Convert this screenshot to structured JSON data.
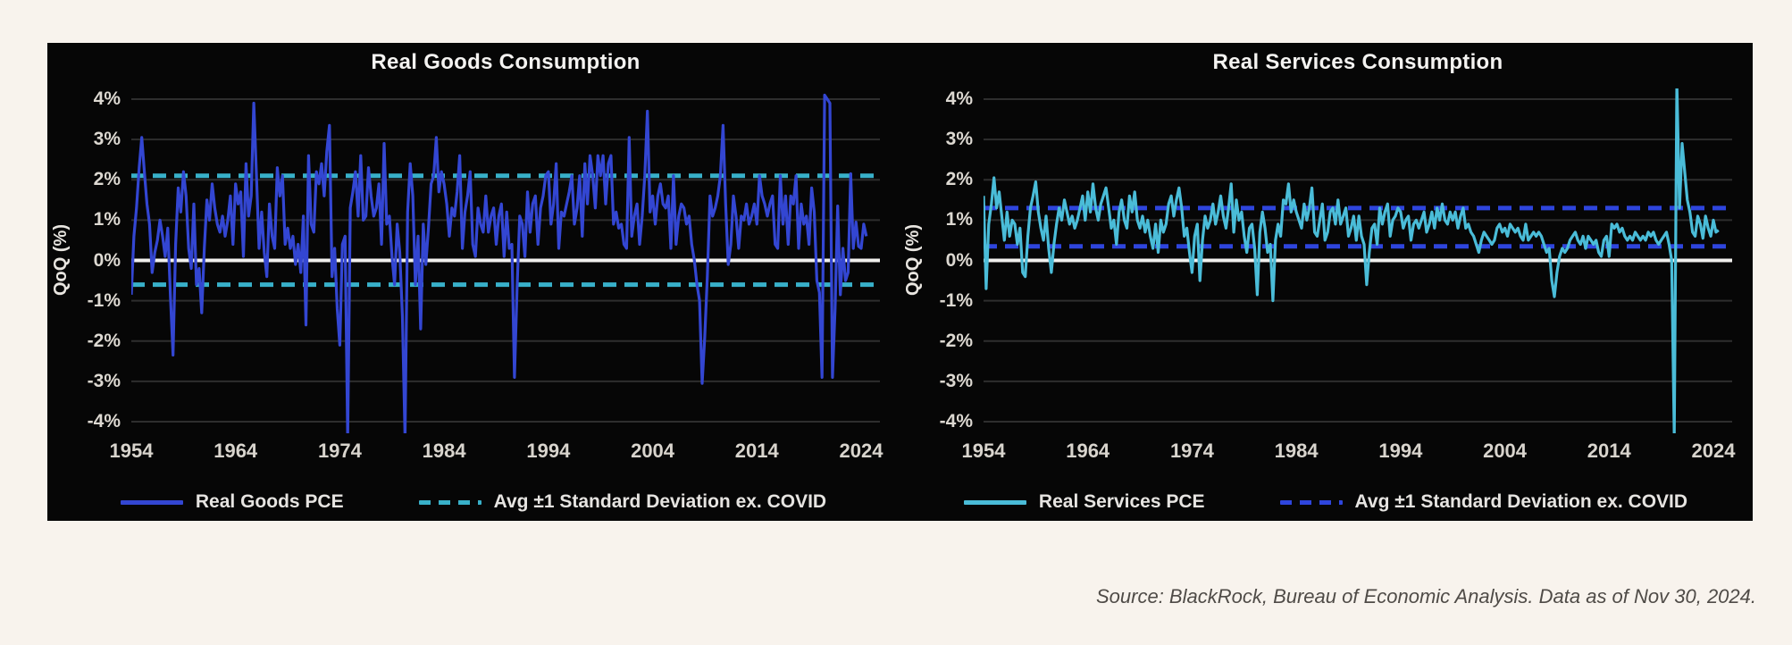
{
  "page": {
    "background": "#f8f3ed",
    "panel_background": "#060606",
    "grid_color": "#2e2e2e",
    "zero_line_color": "#f0efec"
  },
  "source_note": "Source: BlackRock, Bureau of Economic Analysis. Data as of Nov 30, 2024.",
  "chart_data": [
    {
      "type": "line",
      "title": "Real Goods Consumption",
      "ylabel": "QoQ (%)",
      "x_start_year": 1954,
      "x_frequency": "quarterly",
      "xticks": [
        "1954",
        "1964",
        "1974",
        "1984",
        "1994",
        "2004",
        "2014",
        "2024"
      ],
      "yticks": [
        "4%",
        "3%",
        "2%",
        "1%",
        "0%",
        "-1%",
        "-2%",
        "-3%",
        "-4%"
      ],
      "ylim": [
        -4,
        4
      ],
      "grid": true,
      "legend_position": "bottom",
      "series": [
        {
          "name": "Real Goods PCE",
          "style": "solid",
          "color": "#3346d2",
          "values": [
            -0.85,
            0.6,
            1.3,
            2.3,
            3.05,
            2.2,
            1.4,
            0.9,
            -0.3,
            0.2,
            0.5,
            1.0,
            0.6,
            0.1,
            0.8,
            -0.9,
            -2.35,
            0.4,
            1.8,
            1.2,
            2.2,
            1.6,
            0.3,
            -0.2,
            1.4,
            -0.6,
            -0.2,
            -1.3,
            0.3,
            1.5,
            1.0,
            1.9,
            1.3,
            0.9,
            0.7,
            1.1,
            0.6,
            1.0,
            1.6,
            0.4,
            1.9,
            1.4,
            1.7,
            0.1,
            2.4,
            1.1,
            1.6,
            3.9,
            2.1,
            0.3,
            1.2,
            0.2,
            -0.4,
            1.4,
            0.6,
            0.3,
            2.3,
            1.6,
            2.1,
            0.4,
            0.8,
            0.3,
            0.6,
            -0.1,
            0.4,
            -0.3,
            1.1,
            -1.6,
            2.6,
            0.9,
            0.7,
            2.2,
            1.9,
            2.4,
            1.6,
            2.7,
            3.35,
            -0.4,
            0.3,
            -1.2,
            -2.1,
            0.4,
            0.6,
            -4.4,
            1.3,
            1.7,
            2.2,
            1.1,
            2.6,
            1.0,
            1.1,
            2.3,
            1.6,
            1.1,
            1.3,
            1.9,
            0.4,
            2.9,
            0.9,
            1.1,
            0.1,
            -0.6,
            0.9,
            0.2,
            -1.4,
            -4.4,
            1.2,
            2.4,
            1.6,
            -0.6,
            0.6,
            -1.7,
            0.9,
            -0.1,
            0.8,
            1.9,
            2.1,
            3.05,
            1.7,
            2.2,
            1.9,
            1.4,
            0.6,
            1.3,
            1.1,
            1.7,
            2.6,
            0.3,
            1.2,
            1.6,
            2.2,
            0.4,
            0.1,
            1.3,
            0.9,
            0.7,
            1.6,
            0.7,
            1.1,
            1.3,
            0.4,
            1.1,
            1.4,
            0.1,
            1.2,
            0.3,
            0.4,
            -2.9,
            -0.7,
            1.1,
            0.9,
            0.1,
            1.7,
            0.7,
            1.4,
            1.6,
            0.4,
            1.3,
            1.6,
            2.1,
            2.2,
            0.9,
            1.4,
            2.4,
            0.3,
            1.2,
            1.1,
            1.4,
            1.7,
            2.1,
            0.9,
            1.3,
            2.1,
            0.6,
            2.4,
            1.4,
            2.6,
            2.1,
            1.3,
            2.6,
            2.1,
            2.6,
            1.4,
            2.4,
            2.6,
            0.9,
            1.2,
            0.8,
            0.9,
            0.4,
            0.3,
            3.05,
            0.6,
            1.1,
            1.4,
            0.4,
            1.1,
            2.1,
            3.7,
            1.2,
            1.6,
            0.9,
            1.6,
            1.9,
            1.4,
            1.3,
            1.6,
            0.3,
            2.1,
            0.4,
            1.1,
            1.4,
            1.3,
            0.9,
            1.1,
            0.4,
            0.0,
            -0.6,
            -1.0,
            -3.05,
            -1.9,
            -0.4,
            1.6,
            1.1,
            1.3,
            1.6,
            2.1,
            3.35,
            1.4,
            -0.1,
            0.4,
            1.6,
            1.1,
            0.3,
            1.1,
            1.0,
            1.4,
            0.9,
            1.1,
            1.4,
            0.9,
            2.1,
            1.6,
            1.4,
            1.1,
            1.4,
            1.6,
            0.4,
            0.3,
            2.1,
            0.9,
            1.6,
            0.4,
            1.6,
            1.4,
            2.1,
            0.3,
            1.4,
            0.9,
            1.1,
            0.4,
            1.8,
            1.2,
            -0.5,
            -0.8,
            -2.9,
            4.1,
            4.0,
            3.9,
            -2.9,
            -1.2,
            1.35,
            -0.85,
            0.3,
            -0.5,
            -0.3,
            2.15,
            0.3,
            0.95,
            0.35,
            0.3,
            0.9,
            0.6
          ]
        },
        {
          "name": "Avg ±1 Standard Deviation ex. COVID",
          "style": "dashed",
          "color": "#38b0c9",
          "upper": 2.1,
          "lower": -0.6
        }
      ]
    },
    {
      "type": "line",
      "title": "Real Services Consumption",
      "ylabel": "QoQ (%)",
      "x_start_year": 1954,
      "x_frequency": "quarterly",
      "xticks": [
        "1954",
        "1964",
        "1974",
        "1984",
        "1994",
        "2004",
        "2014",
        "2024"
      ],
      "yticks": [
        "4%",
        "3%",
        "2%",
        "1%",
        "0%",
        "-1%",
        "-2%",
        "-3%",
        "-4%"
      ],
      "ylim": [
        -4,
        4
      ],
      "grid": true,
      "legend_position": "bottom",
      "series": [
        {
          "name": "Real Services PCE",
          "style": "solid",
          "color": "#4abcd8",
          "values": [
            1.6,
            -0.7,
            0.9,
            1.4,
            2.05,
            1.3,
            1.7,
            1.1,
            0.5,
            1.2,
            0.6,
            1.0,
            0.9,
            0.4,
            0.8,
            -0.3,
            -0.4,
            0.6,
            1.3,
            1.6,
            1.95,
            1.2,
            0.8,
            0.5,
            1.1,
            0.3,
            -0.3,
            0.4,
            0.9,
            1.3,
            1.0,
            1.5,
            1.2,
            0.9,
            1.1,
            0.8,
            1.0,
            1.3,
            1.6,
            1.0,
            1.7,
            1.2,
            1.9,
            1.3,
            1.0,
            1.4,
            1.6,
            1.8,
            1.3,
            0.8,
            1.0,
            0.4,
            1.2,
            1.5,
            1.0,
            0.8,
            1.6,
            1.2,
            1.7,
            1.0,
            0.8,
            1.1,
            0.7,
            1.0,
            0.6,
            0.3,
            0.9,
            0.2,
            1.0,
            0.7,
            0.9,
            1.4,
            1.6,
            1.1,
            1.5,
            1.8,
            1.3,
            0.6,
            0.8,
            0.2,
            -0.3,
            0.6,
            0.9,
            -0.5,
            0.5,
            1.1,
            0.8,
            1.0,
            1.4,
            0.9,
            1.2,
            1.6,
            1.1,
            0.8,
            1.3,
            1.9,
            0.7,
            1.5,
            1.0,
            1.2,
            0.6,
            0.2,
            0.8,
            0.9,
            0.3,
            -0.85,
            0.7,
            1.2,
            0.8,
            0.2,
            0.4,
            -1.0,
            0.5,
            0.9,
            0.6,
            1.5,
            1.4,
            1.9,
            1.2,
            1.5,
            1.2,
            1.0,
            0.8,
            1.4,
            1.0,
            1.3,
            1.8,
            0.7,
            0.6,
            1.0,
            1.4,
            0.5,
            0.7,
            1.2,
            1.3,
            0.9,
            1.5,
            0.9,
            1.1,
            1.3,
            0.6,
            0.8,
            1.1,
            0.5,
            1.1,
            0.6,
            0.4,
            -0.6,
            0.2,
            0.8,
            0.9,
            0.4,
            1.3,
            0.9,
            1.2,
            1.4,
            0.6,
            1.0,
            1.1,
            1.3,
            1.2,
            0.8,
            1.0,
            1.1,
            0.5,
            0.9,
            1.0,
            0.8,
            1.0,
            1.2,
            0.7,
            0.9,
            1.2,
            0.8,
            1.3,
            1.0,
            1.4,
            1.0,
            0.9,
            1.2,
            1.0,
            1.2,
            0.8,
            1.1,
            1.3,
            0.8,
            0.9,
            0.7,
            0.6,
            0.4,
            0.2,
            0.5,
            0.7,
            0.6,
            0.5,
            0.4,
            0.5,
            0.8,
            0.9,
            0.7,
            0.8,
            0.6,
            0.9,
            0.8,
            0.7,
            0.8,
            0.6,
            0.5,
            0.9,
            0.5,
            0.6,
            0.7,
            0.6,
            0.7,
            0.6,
            0.4,
            0.2,
            0.3,
            -0.5,
            -0.9,
            -0.3,
            0.1,
            0.3,
            0.2,
            0.3,
            0.5,
            0.6,
            0.7,
            0.5,
            0.4,
            0.6,
            0.3,
            0.6,
            0.5,
            0.4,
            0.5,
            0.2,
            0.1,
            0.5,
            0.6,
            0.1,
            0.9,
            0.8,
            0.9,
            0.7,
            0.8,
            0.6,
            0.5,
            0.6,
            0.5,
            0.7,
            0.6,
            0.5,
            0.6,
            0.5,
            0.7,
            0.6,
            0.7,
            0.5,
            0.4,
            0.5,
            0.6,
            0.7,
            0.4,
            0.0,
            -4.35,
            4.4,
            1.3,
            2.9,
            2.2,
            1.5,
            1.2,
            0.7,
            0.6,
            1.1,
            0.9,
            0.55,
            1.1,
            0.8,
            0.6,
            1.0,
            0.7,
            0.75
          ]
        },
        {
          "name": "Avg ±1 Standard Deviation ex. COVID",
          "style": "dashed",
          "color": "#2e45dd",
          "upper": 1.3,
          "lower": 0.35
        }
      ]
    }
  ]
}
